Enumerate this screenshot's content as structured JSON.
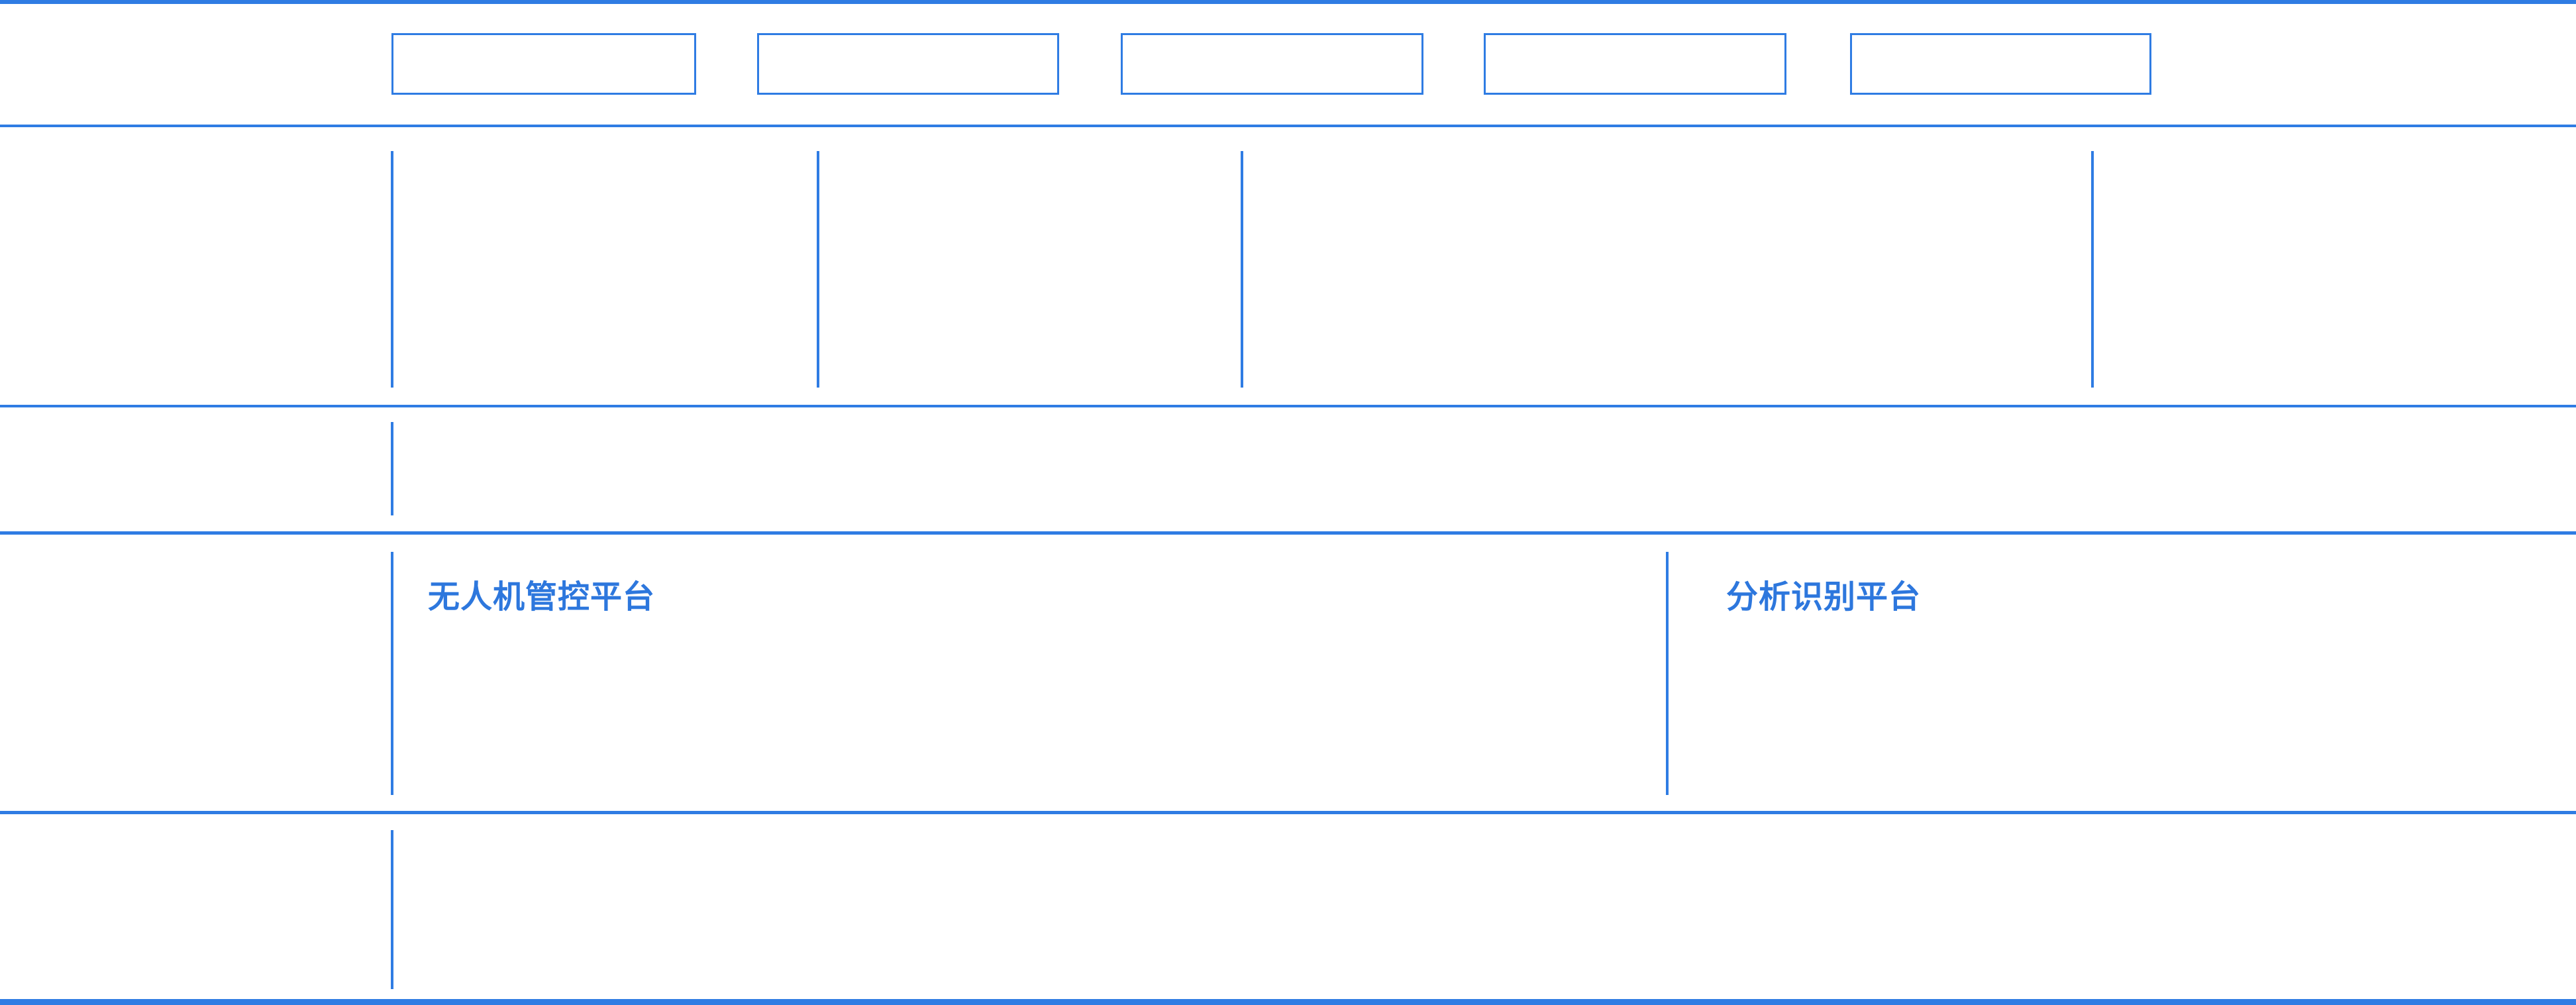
{
  "colors": {
    "accent": "#2F7CE3",
    "title_text": "#2D77DD",
    "background": "#FFFFFF"
  },
  "header": {
    "boxes": [
      {
        "label": ""
      },
      {
        "label": ""
      },
      {
        "label": ""
      },
      {
        "label": ""
      },
      {
        "label": ""
      }
    ]
  },
  "sections": {
    "platforms": [
      {
        "title": "无人机管控平台"
      },
      {
        "title": "分析识别平台"
      }
    ]
  }
}
